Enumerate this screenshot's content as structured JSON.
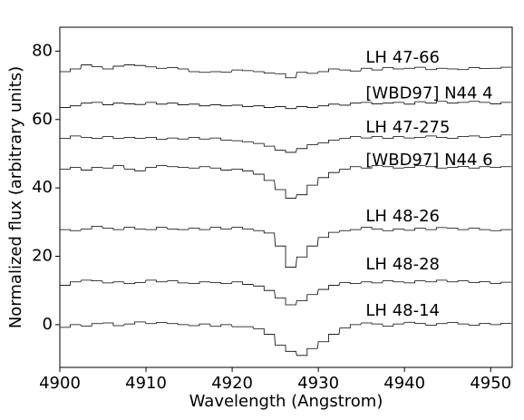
{
  "chart_data": {
    "type": "line",
    "xlabel": "Wavelength (Angstrom)",
    "ylabel": "Normalized flux (arbitrary units)",
    "xlim": [
      4900,
      4952.5
    ],
    "ylim": [
      -12.5,
      87
    ],
    "xticks": [
      4900,
      4910,
      4920,
      4930,
      4940,
      4950
    ],
    "yticks": [
      0,
      20,
      40,
      60,
      80
    ],
    "x": [
      4900.0,
      4901.2,
      4902.5,
      4903.7,
      4905.0,
      4906.2,
      4907.5,
      4908.7,
      4910.0,
      4911.2,
      4912.5,
      4913.7,
      4915.0,
      4916.2,
      4917.5,
      4918.7,
      4920.0,
      4921.2,
      4922.5,
      4923.7,
      4925.0,
      4926.2,
      4927.5,
      4928.7,
      4930.0,
      4931.2,
      4932.5,
      4933.7,
      4935.0,
      4936.2,
      4937.5,
      4938.7,
      4940.0,
      4941.2,
      4942.5,
      4943.7,
      4945.0,
      4946.2,
      4947.5,
      4948.7,
      4950.0,
      4951.2
    ],
    "series": [
      {
        "name": "LH 47-66",
        "values": [
          74.0,
          74.8,
          76.0,
          75.5,
          74.8,
          75.6,
          76.0,
          75.8,
          75.4,
          75.0,
          75.2,
          74.8,
          74.0,
          73.8,
          74.0,
          73.9,
          74.5,
          74.3,
          74.0,
          73.6,
          73.4,
          72.2,
          73.8,
          73.5,
          74.0,
          74.8,
          74.5,
          74.2,
          75.0,
          74.5,
          75.2,
          74.8,
          75.0,
          75.3,
          74.6,
          75.0,
          74.8,
          74.6,
          75.2,
          74.9,
          75.0,
          75.3
        ]
      },
      {
        "name": "[WBD97] N44 4",
        "values": [
          63.5,
          64.0,
          64.8,
          65.0,
          64.3,
          64.8,
          64.6,
          64.4,
          65.0,
          64.5,
          64.8,
          64.3,
          64.5,
          64.0,
          64.3,
          64.0,
          64.2,
          63.8,
          64.0,
          63.5,
          63.8,
          63.2,
          63.8,
          63.5,
          64.0,
          64.5,
          64.2,
          64.8,
          65.0,
          64.6,
          64.8,
          65.0,
          64.5,
          65.2,
          64.8,
          65.3,
          64.8,
          65.0,
          65.3,
          65.0,
          64.6,
          65.0
        ]
      },
      {
        "name": "LH 47-275",
        "values": [
          54.5,
          55.2,
          54.8,
          54.5,
          55.0,
          54.5,
          54.8,
          54.5,
          54.8,
          54.2,
          54.6,
          54.3,
          54.8,
          54.3,
          54.6,
          54.0,
          53.8,
          53.5,
          53.0,
          52.2,
          51.0,
          50.4,
          51.5,
          52.6,
          53.2,
          54.0,
          54.5,
          55.0,
          54.6,
          55.0,
          54.5,
          55.0,
          54.6,
          54.8,
          55.2,
          54.8,
          54.5,
          55.0,
          55.2,
          54.8,
          55.0,
          55.5
        ]
      },
      {
        "name": "[WBD97] N44 6",
        "values": [
          45.5,
          46.0,
          45.2,
          46.0,
          45.8,
          46.5,
          45.5,
          45.0,
          46.0,
          46.5,
          46.2,
          46.0,
          45.8,
          46.2,
          45.8,
          45.2,
          45.5,
          45.0,
          44.0,
          42.2,
          39.5,
          37.0,
          38.0,
          40.8,
          43.0,
          44.5,
          45.5,
          46.2,
          45.8,
          46.5,
          46.2,
          45.8,
          46.0,
          46.5,
          46.2,
          45.8,
          46.0,
          46.3,
          45.8,
          46.2,
          46.0,
          46.2
        ]
      },
      {
        "name": "LH 48-26",
        "values": [
          27.8,
          27.5,
          28.0,
          28.8,
          28.2,
          27.8,
          28.5,
          28.0,
          27.8,
          28.5,
          28.0,
          27.8,
          28.2,
          27.8,
          28.5,
          28.0,
          28.5,
          28.0,
          27.5,
          26.8,
          23.0,
          16.8,
          19.8,
          23.0,
          25.5,
          27.0,
          27.5,
          27.8,
          28.5,
          28.0,
          27.5,
          28.0,
          27.6,
          28.2,
          27.8,
          28.4,
          28.2,
          27.8,
          28.2,
          27.8,
          27.5,
          27.8
        ]
      },
      {
        "name": "LH 48-28",
        "values": [
          11.5,
          12.5,
          13.0,
          12.8,
          12.2,
          12.5,
          12.0,
          12.3,
          13.0,
          12.5,
          12.8,
          12.2,
          12.0,
          12.5,
          12.3,
          12.0,
          12.5,
          11.8,
          11.3,
          10.0,
          7.8,
          5.8,
          7.0,
          8.8,
          10.3,
          11.5,
          12.3,
          12.0,
          12.5,
          12.2,
          12.8,
          12.5,
          12.2,
          12.8,
          12.5,
          13.0,
          12.5,
          12.8,
          12.3,
          12.6,
          12.0,
          12.4
        ]
      },
      {
        "name": "LH 48-14",
        "values": [
          -0.8,
          0.0,
          -0.4,
          0.3,
          0.5,
          -0.3,
          0.2,
          0.8,
          0.3,
          0.6,
          0.3,
          0.0,
          -0.3,
          0.2,
          -0.5,
          0.0,
          -0.6,
          -0.6,
          -1.2,
          -2.8,
          -6.0,
          -7.8,
          -9.0,
          -7.0,
          -5.0,
          -2.8,
          -1.0,
          0.0,
          0.5,
          0.2,
          -0.4,
          0.2,
          0.7,
          0.4,
          -0.2,
          0.3,
          0.6,
          0.2,
          -0.2,
          0.4,
          0.0,
          0.4
        ]
      }
    ],
    "annotations": [
      {
        "text": "LH 47-66",
        "x": 4935.5,
        "y": 78.0
      },
      {
        "text": "[WBD97] N44 4",
        "x": 4935.5,
        "y": 67.5
      },
      {
        "text": "LH 47-275",
        "x": 4935.5,
        "y": 57.5
      },
      {
        "text": "[WBD97] N44 6",
        "x": 4935.5,
        "y": 48.0
      },
      {
        "text": "LH 48-26",
        "x": 4935.5,
        "y": 31.5
      },
      {
        "text": "LH 48-28",
        "x": 4935.5,
        "y": 17.5
      },
      {
        "text": "LH 48-14",
        "x": 4935.5,
        "y": 4.0
      }
    ],
    "grid": false,
    "legend": "none",
    "line_color": "#000000"
  }
}
